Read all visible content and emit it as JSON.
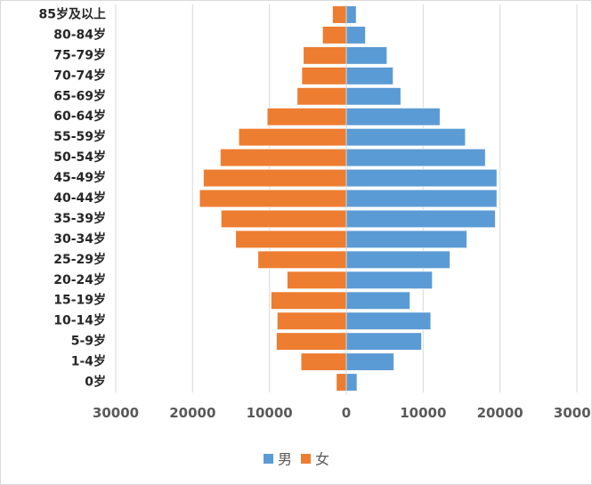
{
  "chart_data": {
    "type": "bar",
    "orientation": "horizontal",
    "style": "population-pyramid",
    "categories": [
      "0岁",
      "1-4岁",
      "5-9岁",
      "10-14岁",
      "15-19岁",
      "20-24岁",
      "25-29岁",
      "30-34岁",
      "35-39岁",
      "40-44岁",
      "45-49岁",
      "50-54岁",
      "55-59岁",
      "60-64岁",
      "65-69岁",
      "70-74岁",
      "75-79岁",
      "80-84岁",
      "85岁及以上"
    ],
    "series": [
      {
        "name": "男",
        "color": "#5b9bd5",
        "side": "right",
        "values": [
          1400,
          6200,
          9800,
          11000,
          8300,
          11200,
          13500,
          15700,
          19400,
          19600,
          19600,
          18100,
          15500,
          12200,
          7100,
          6100,
          5300,
          2500,
          1300
        ]
      },
      {
        "name": "女",
        "color": "#ed7d31",
        "side": "left",
        "values": [
          1300,
          5900,
          9100,
          9000,
          9800,
          7700,
          11500,
          14400,
          16300,
          19100,
          18600,
          16400,
          14000,
          10300,
          6400,
          5800,
          5600,
          3100,
          1800
        ]
      }
    ],
    "xlim": [
      -30000,
      30000
    ],
    "x_ticks": [
      -30000,
      -20000,
      -10000,
      0,
      10000,
      20000,
      30000
    ],
    "x_tick_labels": [
      "30000",
      "20000",
      "10000",
      "0",
      "10000",
      "20000",
      "30000"
    ],
    "grid": "vertical",
    "legend_position": "bottom"
  }
}
